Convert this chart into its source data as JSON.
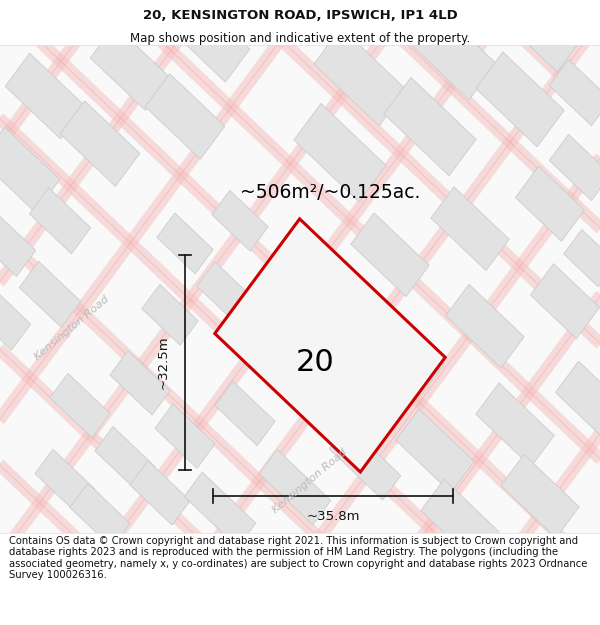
{
  "title": "20, KENSINGTON ROAD, IPSWICH, IP1 4LD",
  "subtitle": "Map shows position and indicative extent of the property.",
  "footer": "Contains OS data © Crown copyright and database right 2021. This information is subject to Crown copyright and database rights 2023 and is reproduced with the permission of HM Land Registry. The polygons (including the associated geometry, namely x, y co-ordinates) are subject to Crown copyright and database rights 2023 Ordnance Survey 100026316.",
  "map_bg": "#f9f9f9",
  "building_color": "#e2e2e2",
  "building_edge": "#cccccc",
  "road_band_color": "#f5c0c0",
  "road_line_color": "#f0a0a0",
  "property_fill": "#f5f5f5",
  "property_edge": "#cc0000",
  "property_label": "20",
  "area_label": "~506m²/~0.125ac.",
  "dim_h_label": "~35.8m",
  "dim_v_label": "~32.5m",
  "road_label": "Kensington Road",
  "title_fontsize": 9.5,
  "subtitle_fontsize": 8.5,
  "footer_fontsize": 7.2,
  "title_color": "#111111",
  "road_label_color": "#bbbbbb",
  "dim_color": "#111111"
}
